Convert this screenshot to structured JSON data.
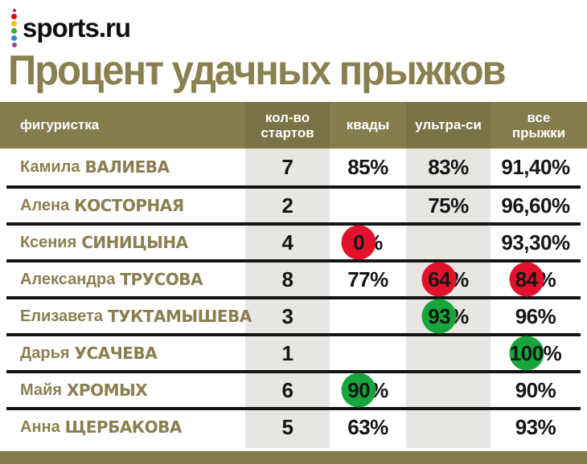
{
  "brand": {
    "logo_text": "sports.ru",
    "dot_colors": [
      "#e5007d",
      "#e30613",
      "#fdc300",
      "#36a635",
      "#2d8fc9",
      "#8a4ea0"
    ]
  },
  "title": "Процент удачных прыжков",
  "colors": {
    "olive": "#857c4d",
    "olive_dark_stripe": "#7b7246",
    "title_olive": "#8a7f4e",
    "name_olive": "#8a7f50",
    "body_stripe_gray": "#e7e6e3",
    "separator_black": "#131313",
    "highlight_red": "#e4112d",
    "highlight_green": "#17a53c"
  },
  "table": {
    "headers": [
      "фигуристка",
      "кол-во\nстартов",
      "квады",
      "ультра-си",
      "все\nпрыжки"
    ],
    "rows": [
      {
        "first": "Камила",
        "last": "ВАЛИЕВА",
        "starts": "7",
        "quads": {
          "num": "85",
          "sign": "%",
          "hl": ""
        },
        "ultra": {
          "num": "83",
          "sign": "%",
          "hl": ""
        },
        "all": {
          "num": "91,40",
          "sign": "%",
          "hl": ""
        }
      },
      {
        "first": "Алена",
        "last": "КОСТОРНАЯ",
        "starts": "2",
        "quads": {
          "num": "",
          "sign": "",
          "hl": ""
        },
        "ultra": {
          "num": "75",
          "sign": "%",
          "hl": ""
        },
        "all": {
          "num": "96,60",
          "sign": "%",
          "hl": ""
        }
      },
      {
        "first": "Ксения",
        "last": "СИНИЦЫНА",
        "starts": "4",
        "quads": {
          "num": "0",
          "sign": "%",
          "hl": "red"
        },
        "ultra": {
          "num": "",
          "sign": "",
          "hl": ""
        },
        "all": {
          "num": "93,30",
          "sign": "%",
          "hl": ""
        }
      },
      {
        "first": "Александра",
        "last": "ТРУСОВА",
        "starts": "8",
        "quads": {
          "num": "77",
          "sign": "%",
          "hl": ""
        },
        "ultra": {
          "num": "64",
          "sign": "%",
          "hl": "red"
        },
        "all": {
          "num": "84",
          "sign": "%",
          "hl": "red"
        }
      },
      {
        "first": "Елизавета",
        "last": "ТУКТАМЫШЕВА",
        "starts": "3",
        "quads": {
          "num": "",
          "sign": "",
          "hl": ""
        },
        "ultra": {
          "num": "93",
          "sign": "%",
          "hl": "green"
        },
        "all": {
          "num": "96",
          "sign": "%",
          "hl": ""
        }
      },
      {
        "first": "Дарья",
        "last": "УСАЧЕВА",
        "starts": "1",
        "quads": {
          "num": "",
          "sign": "",
          "hl": ""
        },
        "ultra": {
          "num": "",
          "sign": "",
          "hl": ""
        },
        "all": {
          "num": "100",
          "sign": "%",
          "hl": "green"
        }
      },
      {
        "first": "Майя",
        "last": "ХРОМЫХ",
        "starts": "6",
        "quads": {
          "num": "90",
          "sign": "%",
          "hl": "green"
        },
        "ultra": {
          "num": "",
          "sign": "",
          "hl": ""
        },
        "all": {
          "num": "90",
          "sign": "%",
          "hl": ""
        }
      },
      {
        "first": "Анна",
        "last": "ЩЕРБАКОВА",
        "starts": "5",
        "quads": {
          "num": "63",
          "sign": "%",
          "hl": ""
        },
        "ultra": {
          "num": "",
          "sign": "",
          "hl": ""
        },
        "all": {
          "num": "93",
          "sign": "%",
          "hl": ""
        }
      }
    ]
  },
  "chart_data": {
    "type": "table",
    "title": "Процент удачных прыжков",
    "columns": [
      "фигуристка",
      "кол-во стартов",
      "квады",
      "ультра-си",
      "все прыжки"
    ],
    "rows": [
      [
        "Камила ВАЛИЕВА",
        "7",
        "85%",
        "83%",
        "91,40%"
      ],
      [
        "Алена КОСТОРНАЯ",
        "2",
        "",
        "75%",
        "96,60%"
      ],
      [
        "Ксения СИНИЦЫНА",
        "4",
        "0%",
        "",
        "93,30%"
      ],
      [
        "Александра ТРУСОВА",
        "8",
        "77%",
        "64%",
        "84%"
      ],
      [
        "Елизавета ТУКТАМЫШЕВА",
        "3",
        "",
        "93%",
        "96%"
      ],
      [
        "Дарья УСАЧЕВА",
        "1",
        "",
        "",
        "100%"
      ],
      [
        "Майя ХРОМЫХ",
        "6",
        "90%",
        "",
        "90%"
      ],
      [
        "Анна ЩЕРБАКОВА",
        "5",
        "63%",
        "",
        "93%"
      ]
    ],
    "highlights": [
      {
        "row": "Ксения СИНИЦЫНА",
        "column": "квады",
        "value": "0%",
        "color": "red"
      },
      {
        "row": "Александра ТРУСОВА",
        "column": "ультра-си",
        "value": "64%",
        "color": "red"
      },
      {
        "row": "Александра ТРУСОВА",
        "column": "все прыжки",
        "value": "84%",
        "color": "red"
      },
      {
        "row": "Елизавета ТУКТАМЫШЕВА",
        "column": "ультра-си",
        "value": "93%",
        "color": "green"
      },
      {
        "row": "Дарья УСАЧЕВА",
        "column": "все прыжки",
        "value": "100%",
        "color": "green"
      },
      {
        "row": "Майя ХРОМЫХ",
        "column": "квады",
        "value": "90%",
        "color": "green"
      }
    ]
  }
}
